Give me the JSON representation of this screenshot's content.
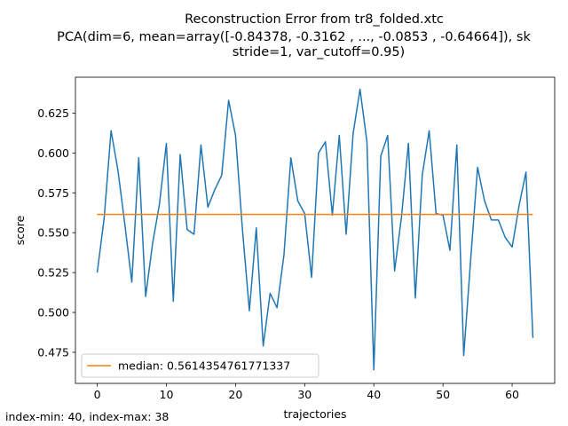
{
  "chart_data": {
    "type": "line",
    "title_lines": [
      "Reconstruction Error from tr8_folded.xtc",
      "PCA(dim=6, mean=array([-0.84378, -0.3162 , ..., -0.0853 , -0.64664]), sk",
      "stride=1, var_cutoff=0.95)"
    ],
    "xlabel": "trajectories",
    "ylabel": "score",
    "xlim": [
      -3.15,
      66.15
    ],
    "ylim": [
      0.4555,
      0.6475
    ],
    "xticks": [
      0,
      10,
      20,
      30,
      40,
      50,
      60
    ],
    "xtick_labels": [
      "0",
      "10",
      "20",
      "30",
      "40",
      "50",
      "60"
    ],
    "yticks": [
      0.475,
      0.5,
      0.525,
      0.55,
      0.575,
      0.6,
      0.625
    ],
    "ytick_labels": [
      "0.475",
      "0.500",
      "0.525",
      "0.550",
      "0.575",
      "0.600",
      "0.625"
    ],
    "grid": false,
    "legend_position": "lower-left",
    "series": [
      {
        "name": "",
        "color": "#1f77b4",
        "x": [
          0,
          1,
          2,
          3,
          4,
          5,
          6,
          7,
          8,
          9,
          10,
          11,
          12,
          13,
          14,
          15,
          16,
          17,
          18,
          19,
          20,
          21,
          22,
          23,
          24,
          25,
          26,
          27,
          28,
          29,
          30,
          31,
          32,
          33,
          34,
          35,
          36,
          37,
          38,
          39,
          40,
          41,
          42,
          43,
          44,
          45,
          46,
          47,
          48,
          49,
          50,
          51,
          52,
          53,
          54,
          55,
          56,
          57,
          58,
          59,
          60,
          61,
          62,
          63
        ],
        "y": [
          0.525,
          0.559,
          0.614,
          0.589,
          0.555,
          0.519,
          0.597,
          0.51,
          0.543,
          0.568,
          0.606,
          0.507,
          0.599,
          0.552,
          0.549,
          0.605,
          0.566,
          0.577,
          0.586,
          0.633,
          0.611,
          0.552,
          0.501,
          0.553,
          0.479,
          0.512,
          0.503,
          0.536,
          0.597,
          0.57,
          0.562,
          0.522,
          0.6,
          0.607,
          0.561,
          0.611,
          0.549,
          0.612,
          0.64,
          0.607,
          0.464,
          0.598,
          0.611,
          0.526,
          0.56,
          0.606,
          0.509,
          0.586,
          0.614,
          0.562,
          0.561,
          0.539,
          0.605,
          0.473,
          0.533,
          0.591,
          0.57,
          0.558,
          0.558,
          0.547,
          0.541,
          0.567,
          0.588,
          0.484
        ]
      },
      {
        "name": "median: 0.5614354761771337",
        "color": "#ff7f0e",
        "x": [
          0,
          63
        ],
        "y": [
          0.5614354761771337,
          0.5614354761771337
        ]
      }
    ]
  },
  "footnote": "index-min: 40, index-max: 38"
}
